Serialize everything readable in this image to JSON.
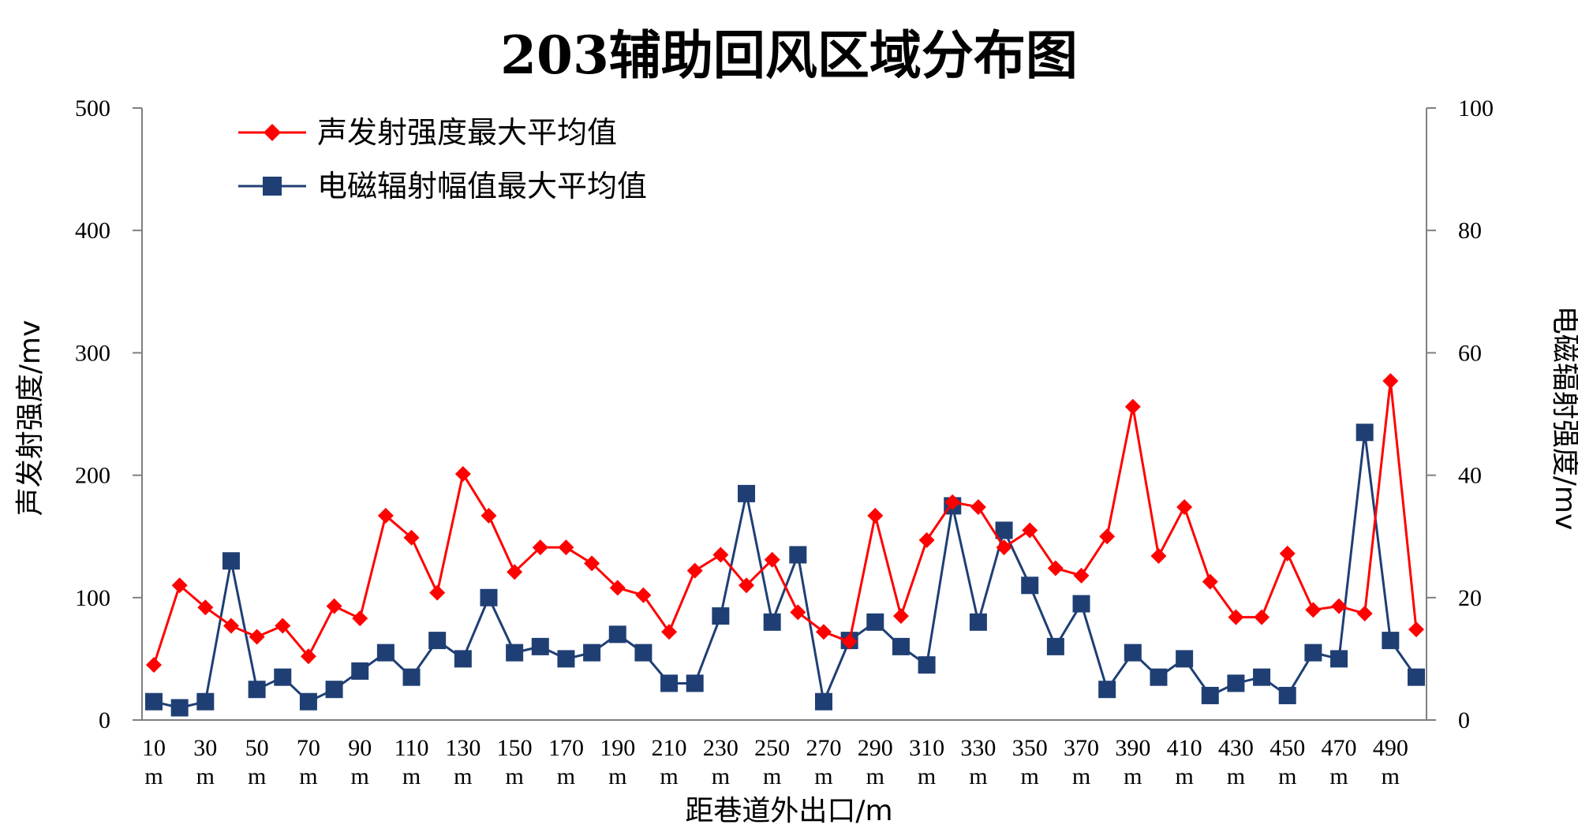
{
  "chart_data": {
    "type": "line",
    "title": "203辅助回风区域分布图",
    "xlabel": "距巷道外出口/m",
    "ylabel_left": "声发射强度/mv",
    "ylabel_right": "电磁辐射强度/mv",
    "ylim_left": [
      0,
      500
    ],
    "ylim_right": [
      0,
      100
    ],
    "yticks_left": [
      "0",
      "100",
      "200",
      "300",
      "400",
      "500"
    ],
    "yticks_right": [
      "0",
      "20",
      "40",
      "60",
      "80",
      "100"
    ],
    "x": [
      10,
      20,
      30,
      40,
      50,
      60,
      70,
      80,
      90,
      100,
      110,
      120,
      130,
      140,
      150,
      160,
      170,
      180,
      190,
      200,
      210,
      220,
      230,
      240,
      250,
      260,
      270,
      280,
      290,
      300,
      310,
      320,
      330,
      340,
      350,
      360,
      370,
      380,
      390,
      400,
      410,
      420,
      430,
      440,
      450,
      460,
      470,
      480,
      490,
      500
    ],
    "xtick_labels": [
      {
        "x": 10,
        "num": "10",
        "unit": "m"
      },
      {
        "x": 30,
        "num": "30",
        "unit": "m"
      },
      {
        "x": 50,
        "num": "50",
        "unit": "m"
      },
      {
        "x": 70,
        "num": "70",
        "unit": "m"
      },
      {
        "x": 90,
        "num": "90",
        "unit": "m"
      },
      {
        "x": 110,
        "num": "110",
        "unit": "m"
      },
      {
        "x": 130,
        "num": "130",
        "unit": "m"
      },
      {
        "x": 150,
        "num": "150",
        "unit": "m"
      },
      {
        "x": 170,
        "num": "170",
        "unit": "m"
      },
      {
        "x": 190,
        "num": "190",
        "unit": "m"
      },
      {
        "x": 210,
        "num": "210",
        "unit": "m"
      },
      {
        "x": 230,
        "num": "230",
        "unit": "m"
      },
      {
        "x": 250,
        "num": "250",
        "unit": "m"
      },
      {
        "x": 270,
        "num": "270",
        "unit": "m"
      },
      {
        "x": 290,
        "num": "290",
        "unit": "m"
      },
      {
        "x": 310,
        "num": "310",
        "unit": "m"
      },
      {
        "x": 330,
        "num": "330",
        "unit": "m"
      },
      {
        "x": 350,
        "num": "350",
        "unit": "m"
      },
      {
        "x": 370,
        "num": "370",
        "unit": "m"
      },
      {
        "x": 390,
        "num": "390",
        "unit": "m"
      },
      {
        "x": 410,
        "num": "410",
        "unit": "m"
      },
      {
        "x": 430,
        "num": "430",
        "unit": "m"
      },
      {
        "x": 450,
        "num": "450",
        "unit": "m"
      },
      {
        "x": 470,
        "num": "470",
        "unit": "m"
      },
      {
        "x": 490,
        "num": "490",
        "unit": "m"
      }
    ],
    "series": [
      {
        "name": "声发射强度最大平均值",
        "axis": "left",
        "color": "#FF0000",
        "marker": "diamond",
        "values": [
          45,
          110,
          92,
          77,
          68,
          77,
          52,
          93,
          83,
          167,
          149,
          104,
          201,
          167,
          121,
          141,
          141,
          128,
          108,
          102,
          72,
          122,
          135,
          110,
          131,
          88,
          72,
          64,
          167,
          85,
          147,
          178,
          174,
          141,
          155,
          124,
          118,
          150,
          256,
          134,
          174,
          113,
          84,
          84,
          136,
          90,
          93,
          87,
          277,
          74
        ]
      },
      {
        "name": "电磁辐射幅值最大平均值",
        "axis": "right",
        "color": "#1F3F74",
        "marker": "square",
        "values": [
          3,
          2,
          3,
          26,
          5,
          7,
          3,
          5,
          8,
          11,
          7,
          13,
          10,
          20,
          11,
          12,
          10,
          11,
          14,
          11,
          6,
          6,
          17,
          37,
          16,
          27,
          3,
          13,
          16,
          12,
          9,
          35,
          16,
          31,
          22,
          12,
          19,
          5,
          11,
          7,
          10,
          4,
          6,
          7,
          4,
          11,
          10,
          47,
          13,
          7
        ]
      }
    ],
    "grid": false,
    "legend_position": "top-left"
  }
}
